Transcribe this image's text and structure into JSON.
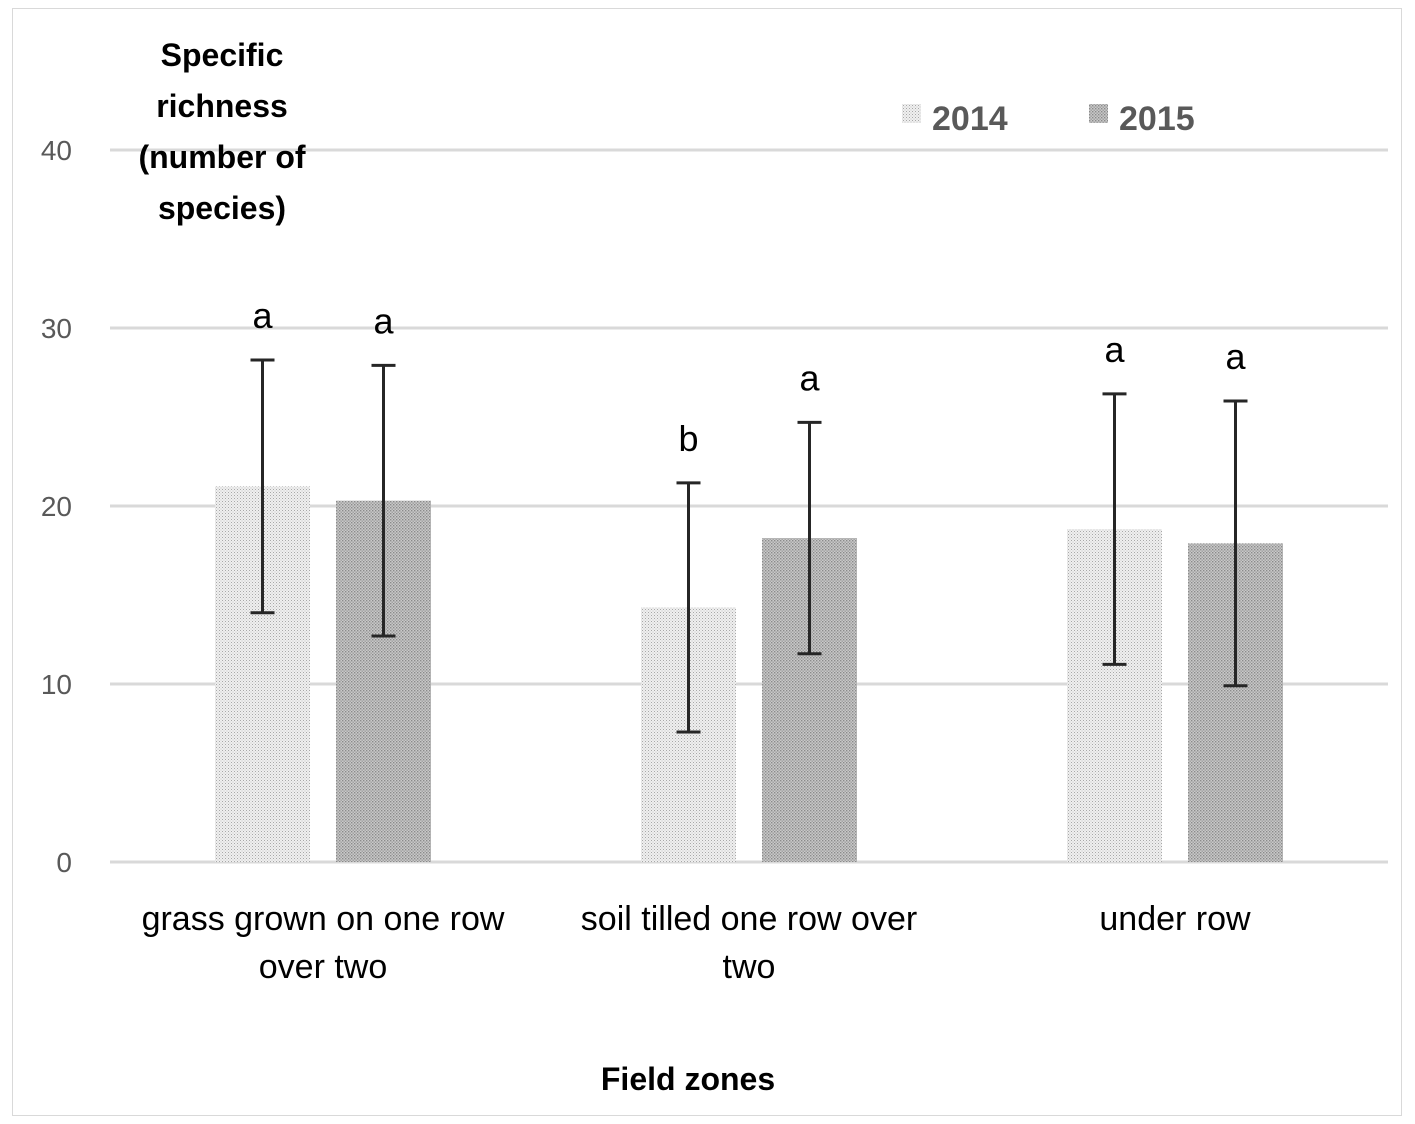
{
  "chart_data": {
    "type": "bar",
    "ylabel": "Specific richness (number of species)",
    "xlabel": "Field zones",
    "ylim": [
      0,
      40
    ],
    "yticks": [
      0,
      10,
      20,
      30,
      40
    ],
    "grid": true,
    "legend_position": "top-right",
    "categories": [
      "grass grown on one row over two",
      "soil tilled one row over two",
      "under row"
    ],
    "series": [
      {
        "name": "2014",
        "color": "#dcdcdc",
        "values": [
          21.1,
          14.3,
          18.7
        ],
        "error": [
          7.1,
          7.0,
          7.6
        ],
        "significance": [
          "a",
          "b",
          "a"
        ]
      },
      {
        "name": "2015",
        "color": "#b3b3b3",
        "values": [
          20.3,
          18.2,
          17.9
        ],
        "error": [
          7.6,
          6.5,
          8.0
        ],
        "significance": [
          "a",
          "a",
          "a"
        ]
      }
    ]
  }
}
